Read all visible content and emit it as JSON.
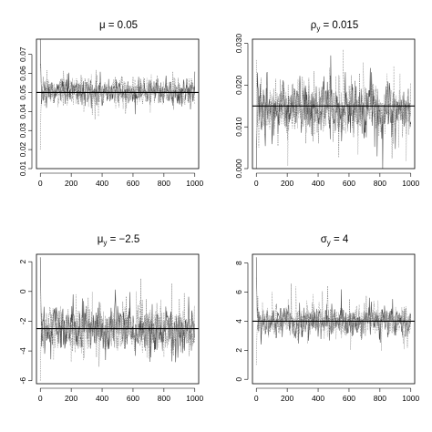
{
  "figure": {
    "panels": [
      {
        "id": "mu",
        "title": "μ = 0.05"
      },
      {
        "id": "rho_y",
        "title_main": "ρ",
        "title_sub": "y",
        "title_rest": " = 0.015"
      },
      {
        "id": "mu_y",
        "title_main": "μ",
        "title_sub": "y",
        "title_rest": " = −2.5"
      },
      {
        "id": "sigma_y",
        "title_main": "σ",
        "title_sub": "y",
        "title_rest": " = 4"
      }
    ]
  },
  "chart_data": [
    {
      "type": "line",
      "title": "μ = 0.05",
      "xlabel": "",
      "ylabel": "",
      "xlim": [
        -25,
        1025
      ],
      "ylim": [
        0.01,
        0.078
      ],
      "x_ticks": [
        0,
        200,
        400,
        600,
        800,
        1000
      ],
      "x_tick_labels": [
        "0",
        "200",
        "400",
        "600",
        "800",
        "1000"
      ],
      "y_ticks": [
        0.01,
        0.02,
        0.03,
        0.04,
        0.05,
        0.06,
        0.07
      ],
      "y_tick_labels": [
        "0.01",
        "0.02",
        "0.03",
        "0.04",
        "0.05",
        "0.06",
        "0.07"
      ],
      "true_value": 0.05,
      "series": [
        {
          "center": 0.0505,
          "spread": 0.004,
          "burn_in": [
            0.078,
            0.02,
            0.065
          ]
        }
      ]
    },
    {
      "type": "line",
      "title": "ρy = 0.015",
      "xlabel": "",
      "ylabel": "",
      "xlim": [
        -25,
        1025
      ],
      "ylim": [
        0,
        0.031
      ],
      "x_ticks": [
        0,
        200,
        400,
        600,
        800,
        1000
      ],
      "x_tick_labels": [
        "0",
        "200",
        "400",
        "600",
        "800",
        "1000"
      ],
      "y_ticks": [
        0,
        0.01,
        0.02,
        0.03
      ],
      "y_tick_labels": [
        "0.000",
        "0.010",
        "0.020",
        "0.030"
      ],
      "true_value": 0.015,
      "series": [
        {
          "center": 0.0145,
          "spread": 0.0038,
          "burn_in": [
            0.0,
            0.026,
            0.005
          ]
        }
      ]
    },
    {
      "type": "line",
      "title": "μy = −2.5",
      "xlabel": "",
      "ylabel": "",
      "xlim": [
        -25,
        1025
      ],
      "ylim": [
        -6.2,
        2.5
      ],
      "x_ticks": [
        0,
        200,
        400,
        600,
        800,
        1000
      ],
      "x_tick_labels": [
        "0",
        "200",
        "400",
        "600",
        "800",
        "1000"
      ],
      "y_ticks": [
        -6,
        -4,
        -2,
        0,
        2
      ],
      "y_tick_labels": [
        "-6",
        "-4",
        "-2",
        "0",
        "2"
      ],
      "true_value": -2.5,
      "series": [
        {
          "center": -2.5,
          "spread": 0.9,
          "burn_in": [
            2.3,
            -6.0,
            1.0
          ]
        }
      ]
    },
    {
      "type": "line",
      "title": "σy = 4",
      "xlabel": "",
      "ylabel": "",
      "xlim": [
        -25,
        1025
      ],
      "ylim": [
        -0.3,
        8.6
      ],
      "x_ticks": [
        0,
        200,
        400,
        600,
        800,
        1000
      ],
      "x_tick_labels": [
        "0",
        "200",
        "400",
        "600",
        "800",
        "1000"
      ],
      "y_ticks": [
        0,
        2,
        4,
        6,
        8
      ],
      "y_tick_labels": [
        "0",
        "2",
        "4",
        "6",
        "8"
      ],
      "true_value": 4,
      "series": [
        {
          "center": 4.0,
          "spread": 0.6,
          "burn_in": [
            8.4,
            1.0,
            7.0
          ]
        }
      ]
    }
  ]
}
